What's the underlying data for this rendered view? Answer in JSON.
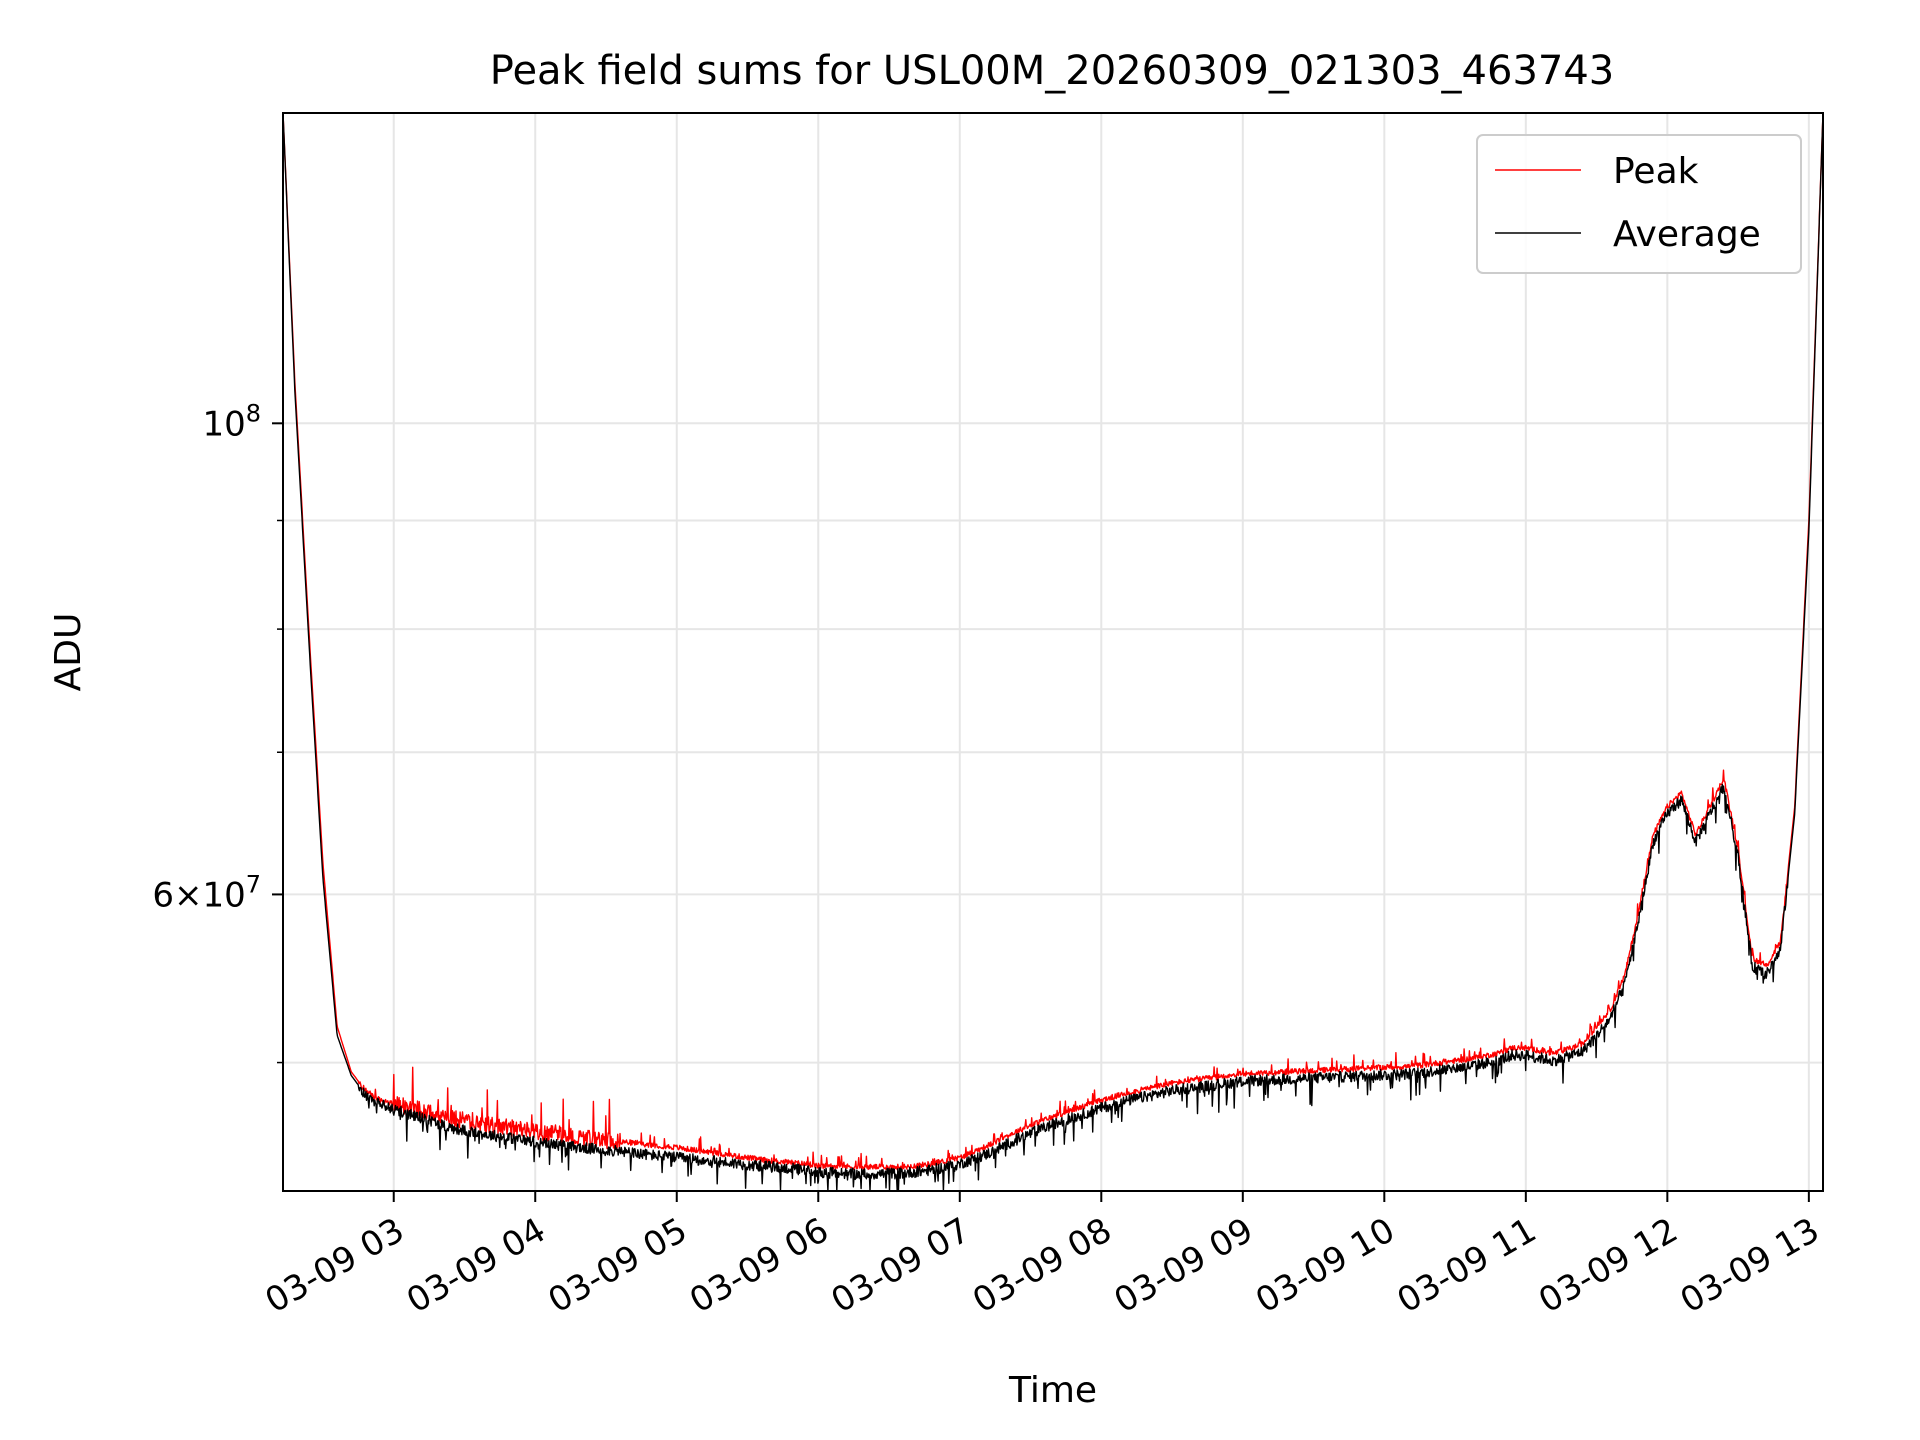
{
  "chart_data": {
    "type": "line",
    "title": "Peak field sums for USL00M_20260309_021303_463743",
    "xlabel": "Time",
    "ylabel": "ADU",
    "yscale": "log",
    "grid": true,
    "legend_position": "top-right",
    "xlim_hours": [
      2.2175,
      13.1
    ],
    "ylim": [
      43500000,
      140000000
    ],
    "x_ticks": [
      {
        "hour": 3,
        "label": "03-09 03"
      },
      {
        "hour": 4,
        "label": "03-09 04"
      },
      {
        "hour": 5,
        "label": "03-09 05"
      },
      {
        "hour": 6,
        "label": "03-09 06"
      },
      {
        "hour": 7,
        "label": "03-09 07"
      },
      {
        "hour": 8,
        "label": "03-09 08"
      },
      {
        "hour": 9,
        "label": "03-09 09"
      },
      {
        "hour": 10,
        "label": "03-09 10"
      },
      {
        "hour": 11,
        "label": "03-09 11"
      },
      {
        "hour": 12,
        "label": "03-09 12"
      },
      {
        "hour": 13,
        "label": "03-09 13"
      }
    ],
    "y_major_ticks": [
      {
        "value": 100000000,
        "mantissa": "10",
        "exp": "8",
        "times": false
      },
      {
        "value": 60000000,
        "mantissa": "6",
        "exp": "7",
        "times": true
      }
    ],
    "y_minor_ticks": [
      50000000,
      70000000,
      80000000,
      90000000
    ],
    "series": [
      {
        "name": "Peak",
        "color": "#ff0000",
        "x_hours": [
          2.2175,
          2.3,
          2.4,
          2.5,
          2.6,
          2.7,
          2.8,
          2.9,
          3.0,
          3.2,
          3.4,
          3.6,
          3.8,
          4.0,
          4.3,
          4.6,
          5.0,
          5.3,
          5.6,
          5.9,
          6.0,
          6.3,
          6.6,
          6.8,
          7.0,
          7.2,
          7.4,
          7.6,
          7.8,
          8.0,
          8.2,
          8.5,
          8.8,
          9.0,
          9.3,
          9.6,
          9.9,
          10.2,
          10.4,
          10.6,
          10.8,
          10.9,
          11.0,
          11.2,
          11.4,
          11.5,
          11.6,
          11.7,
          11.8,
          11.9,
          12.0,
          12.1,
          12.2,
          12.3,
          12.4,
          12.5,
          12.6,
          12.7,
          12.8,
          12.9,
          13.0,
          13.1
        ],
        "values": [
          140000000,
          105000000,
          80000000,
          62000000,
          52000000,
          49500000,
          48500000,
          48000000,
          47800000,
          47500000,
          47100000,
          46800000,
          46600000,
          46400000,
          46100000,
          45900000,
          45600000,
          45300000,
          45000000,
          44800000,
          44700000,
          44650000,
          44650000,
          44800000,
          45100000,
          45700000,
          46400000,
          47000000,
          47500000,
          48000000,
          48400000,
          48900000,
          49200000,
          49400000,
          49500000,
          49600000,
          49700000,
          49800000,
          50000000,
          50200000,
          50500000,
          50800000,
          50800000,
          50500000,
          51000000,
          52000000,
          53000000,
          55000000,
          59000000,
          64000000,
          66000000,
          67000000,
          64000000,
          66000000,
          68000000,
          63000000,
          56000000,
          55500000,
          57000000,
          66000000,
          90000000,
          140000000
        ]
      },
      {
        "name": "Average",
        "color": "#000000",
        "x_hours": [
          2.2175,
          2.3,
          2.4,
          2.5,
          2.6,
          2.7,
          2.8,
          2.9,
          3.0,
          3.2,
          3.4,
          3.6,
          3.8,
          4.0,
          4.3,
          4.6,
          5.0,
          5.3,
          5.6,
          5.9,
          6.0,
          6.3,
          6.6,
          6.8,
          7.0,
          7.2,
          7.4,
          7.6,
          7.8,
          8.0,
          8.2,
          8.5,
          8.8,
          9.0,
          9.3,
          9.6,
          9.9,
          10.2,
          10.4,
          10.6,
          10.8,
          10.9,
          11.0,
          11.2,
          11.4,
          11.5,
          11.6,
          11.7,
          11.8,
          11.9,
          12.0,
          12.1,
          12.2,
          12.3,
          12.4,
          12.5,
          12.6,
          12.7,
          12.8,
          12.9,
          13.0,
          13.1
        ],
        "values": [
          140000000,
          104000000,
          79000000,
          61000000,
          51500000,
          49300000,
          48300000,
          47800000,
          47500000,
          47100000,
          46600000,
          46300000,
          46100000,
          45900000,
          45600000,
          45400000,
          45100000,
          44900000,
          44700000,
          44500000,
          44400000,
          44300000,
          44350000,
          44500000,
          44800000,
          45300000,
          46000000,
          46600000,
          47100000,
          47600000,
          48000000,
          48500000,
          48800000,
          49000000,
          49100000,
          49200000,
          49300000,
          49400000,
          49600000,
          49800000,
          50100000,
          50400000,
          50400000,
          50100000,
          50600000,
          51500000,
          52500000,
          54500000,
          58500000,
          63500000,
          65500000,
          66500000,
          63500000,
          65500000,
          67500000,
          62500000,
          55500000,
          55000000,
          56500000,
          65500000,
          89000000,
          140000000
        ]
      }
    ]
  }
}
